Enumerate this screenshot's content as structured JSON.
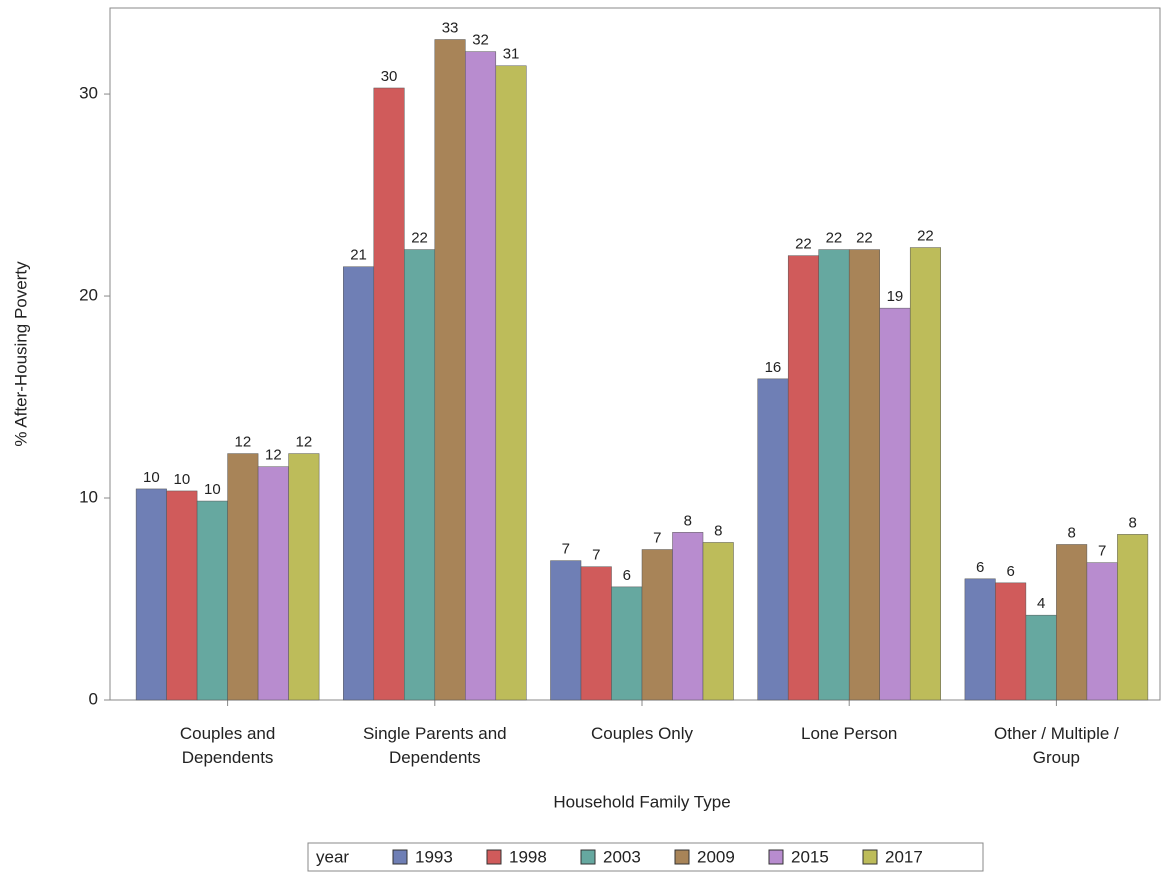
{
  "chart_data": {
    "type": "bar",
    "x_label": "Household Family Type",
    "y_label": "% After-Housing Poverty",
    "legend_title": "year",
    "legend_position": "bottom",
    "categories": [
      "Couples and\nDependents",
      "Single Parents and\nDependents",
      "Couples Only",
      "Lone Person",
      "Other / Multiple /\nGroup"
    ],
    "series": [
      {
        "name": "1993",
        "color": "#6f7fb5",
        "values": [
          10.45,
          21.45,
          6.9,
          15.9,
          6.0
        ],
        "value_labels": [
          "10",
          "21",
          "7",
          "16",
          "6"
        ]
      },
      {
        "name": "1998",
        "color": "#d05b5b",
        "values": [
          10.35,
          30.3,
          6.6,
          22.0,
          5.8
        ],
        "value_labels": [
          "10",
          "30",
          "7",
          "22",
          "6"
        ]
      },
      {
        "name": "2003",
        "color": "#66a8a0",
        "values": [
          9.85,
          22.3,
          5.6,
          22.3,
          4.2
        ],
        "value_labels": [
          "10",
          "22",
          "6",
          "22",
          "4"
        ]
      },
      {
        "name": "2009",
        "color": "#a88458",
        "values": [
          12.2,
          32.7,
          7.45,
          22.3,
          7.7
        ],
        "value_labels": [
          "12",
          "33",
          "7",
          "22",
          "8"
        ]
      },
      {
        "name": "2015",
        "color": "#b88ccf",
        "values": [
          11.55,
          32.1,
          8.3,
          19.4,
          6.8
        ],
        "value_labels": [
          "12",
          "32",
          "8",
          "19",
          "7"
        ]
      },
      {
        "name": "2017",
        "color": "#bdbc5a",
        "values": [
          12.2,
          31.4,
          7.8,
          22.4,
          8.2
        ],
        "value_labels": [
          "12",
          "31",
          "8",
          "22",
          "8"
        ]
      }
    ],
    "ylim": [
      0,
      34.26
    ],
    "yticks": [
      0,
      10,
      20,
      30
    ],
    "grid": false
  }
}
